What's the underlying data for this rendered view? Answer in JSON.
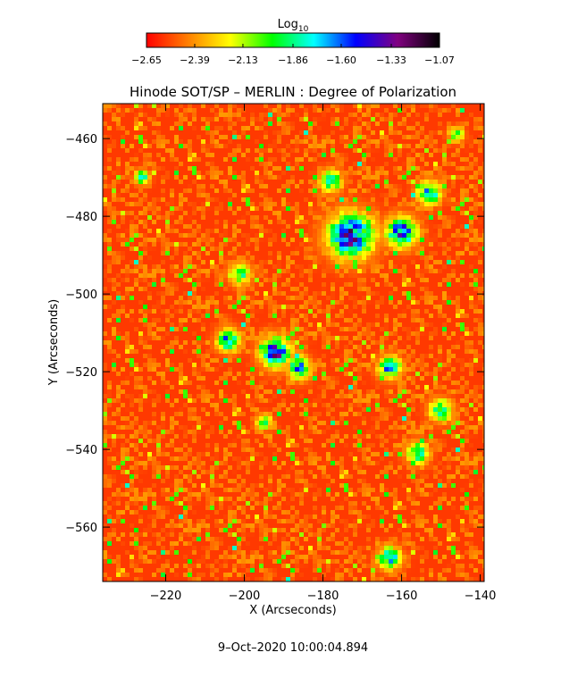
{
  "chart_data": {
    "type": "heatmap",
    "title": "Hinode SOT/SP – MERLIN : Degree of Polarization",
    "xlabel": "X (Arcseconds)",
    "ylabel": "Y (Arcseconds)",
    "xlim": [
      -236,
      -139
    ],
    "ylim": [
      -574,
      -451
    ],
    "x_ticks": [
      -220,
      -200,
      -180,
      -160,
      -140
    ],
    "x_tick_labels": [
      "−220",
      "−200",
      "−180",
      "−160",
      "−140"
    ],
    "y_ticks": [
      -460,
      -480,
      -500,
      -520,
      -540,
      -560
    ],
    "y_tick_labels": [
      "−460",
      "−480",
      "−500",
      "−520",
      "−540",
      "−560"
    ],
    "colorbar": {
      "label_base": "Log",
      "label_sub": "10",
      "range": [
        -2.65,
        -1.07
      ],
      "ticks": [
        -2.65,
        -2.39,
        -2.13,
        -1.86,
        -1.6,
        -1.33,
        -1.07
      ],
      "tick_labels": [
        "−2.65",
        "−2.39",
        "−2.13",
        "−1.86",
        "−1.60",
        "−1.33",
        "−1.07"
      ],
      "colors": [
        "#ff0000",
        "#ff8000",
        "#ffff00",
        "#00ff00",
        "#00ffff",
        "#0000ff",
        "#800080",
        "#000000"
      ]
    },
    "background_level": -2.55,
    "features": [
      {
        "x": -173,
        "y": -485,
        "radius": 6,
        "peak": -1.3
      },
      {
        "x": -160,
        "y": -484,
        "radius": 4,
        "peak": -1.4
      },
      {
        "x": -178,
        "y": -471,
        "radius": 3,
        "peak": -1.75
      },
      {
        "x": -153,
        "y": -474,
        "radius": 3,
        "peak": -1.55
      },
      {
        "x": -192,
        "y": -515,
        "radius": 4,
        "peak": -1.35
      },
      {
        "x": -204,
        "y": -512,
        "radius": 3,
        "peak": -1.6
      },
      {
        "x": -186,
        "y": -519,
        "radius": 3,
        "peak": -1.6
      },
      {
        "x": -163,
        "y": -519,
        "radius": 3,
        "peak": -1.55
      },
      {
        "x": -150,
        "y": -530,
        "radius": 3,
        "peak": -1.7
      },
      {
        "x": -156,
        "y": -541,
        "radius": 3,
        "peak": -1.75
      },
      {
        "x": -163,
        "y": -568,
        "radius": 3,
        "peak": -1.6
      },
      {
        "x": -201,
        "y": -495,
        "radius": 3,
        "peak": -1.9
      },
      {
        "x": -226,
        "y": -470,
        "radius": 2,
        "peak": -1.8
      },
      {
        "x": -146,
        "y": -459,
        "radius": 2,
        "peak": -1.8
      },
      {
        "x": -195,
        "y": -533,
        "radius": 2,
        "peak": -1.8
      }
    ]
  },
  "timestamp": "9–Oct–2020 10:00:04.894"
}
